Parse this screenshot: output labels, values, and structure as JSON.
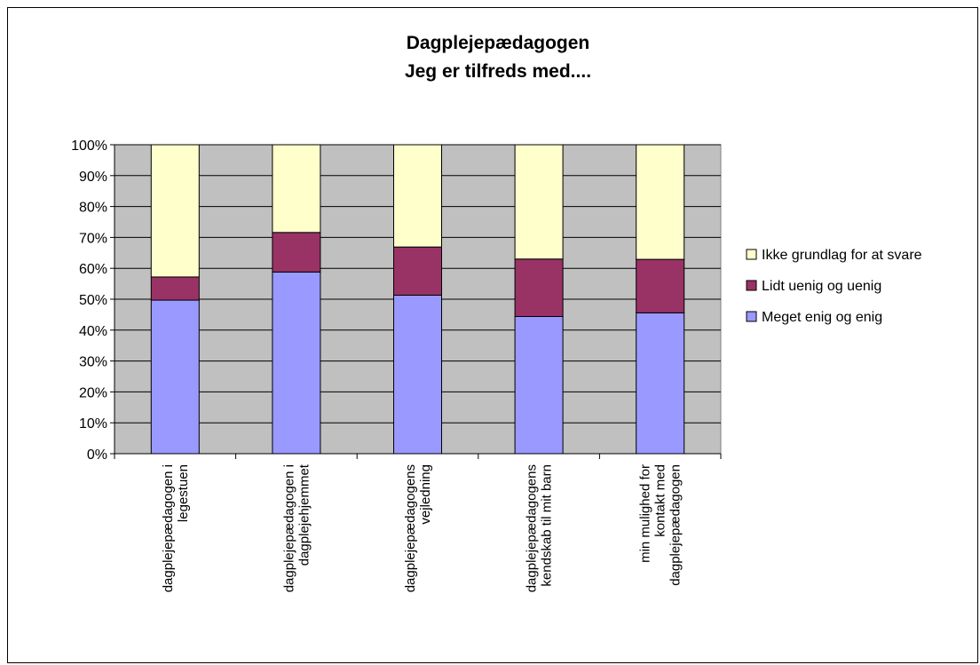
{
  "chart_data": {
    "type": "bar",
    "stacked": true,
    "title": [
      "Dagplejepædagogen",
      "Jeg er tilfreds med...."
    ],
    "xlabel": "",
    "ylabel": "",
    "ylim": [
      0,
      100
    ],
    "yticks": [
      "0%",
      "10%",
      "20%",
      "30%",
      "40%",
      "50%",
      "60%",
      "70%",
      "80%",
      "90%",
      "100%"
    ],
    "grid": true,
    "legend_position": "right",
    "categories": [
      [
        "dagplejepædagogen i",
        "legestuen"
      ],
      [
        "dagplejepædagogen i",
        "dagplejehjemmet"
      ],
      [
        "dagplejepædagogens",
        "vejledning"
      ],
      [
        "dagplejepædagogens",
        "kendskab til mit barn"
      ],
      [
        "min mulighed for",
        "kontakt med",
        "dagplejepædagogen"
      ]
    ],
    "series": [
      {
        "name": "Meget enig og enig",
        "color": "#9999ff",
        "values": [
          49.7,
          58.8,
          51.3,
          44.4,
          45.6
        ]
      },
      {
        "name": "Lidt uenig og uenig",
        "color": "#993366",
        "values": [
          7.5,
          12.8,
          15.6,
          18.6,
          17.3
        ]
      },
      {
        "name": "Ikke grundlag for at svare",
        "color": "#ffffcc",
        "values": [
          42.8,
          28.4,
          33.1,
          37.0,
          37.1
        ]
      }
    ],
    "plot_background": "#c0c0c0"
  }
}
